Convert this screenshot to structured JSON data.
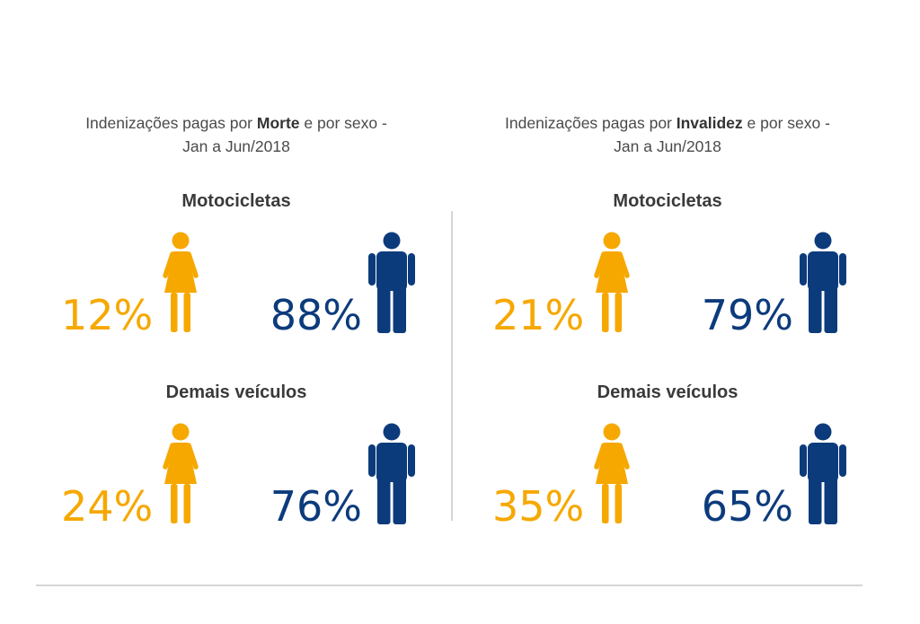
{
  "colors": {
    "female": "#F6A800",
    "male": "#0C3B7C",
    "text": "#4a4a4a",
    "divider": "#d6d6d6"
  },
  "icons": {
    "female": "woman-icon",
    "male": "man-icon"
  },
  "panels": [
    {
      "title_pre": "Indenizações pagas por ",
      "title_bold": "Morte",
      "title_post": " e por sexo -",
      "title_line2": "Jan a Jun/2018",
      "sections": [
        {
          "label": "Motocicletas",
          "female_pct": "12%",
          "male_pct": "88%"
        },
        {
          "label": "Demais veículos",
          "female_pct": "24%",
          "male_pct": "76%"
        }
      ]
    },
    {
      "title_pre": "Indenizações pagas por ",
      "title_bold": "Invalidez",
      "title_post": " e por sexo -",
      "title_line2": "Jan a Jun/2018",
      "sections": [
        {
          "label": "Motocicletas",
          "female_pct": "21%",
          "male_pct": "79%"
        },
        {
          "label": "Demais veículos",
          "female_pct": "35%",
          "male_pct": "65%"
        }
      ]
    }
  ],
  "chart_data": [
    {
      "type": "pie",
      "title": "Indenizações pagas por Morte e por sexo - Jan a Jun/2018",
      "groups": [
        {
          "name": "Motocicletas",
          "categories": [
            "Feminino",
            "Masculino"
          ],
          "values": [
            12,
            88
          ]
        },
        {
          "name": "Demais veículos",
          "categories": [
            "Feminino",
            "Masculino"
          ],
          "values": [
            24,
            76
          ]
        }
      ]
    },
    {
      "type": "pie",
      "title": "Indenizações pagas por Invalidez e por sexo - Jan a Jun/2018",
      "groups": [
        {
          "name": "Motocicletas",
          "categories": [
            "Feminino",
            "Masculino"
          ],
          "values": [
            21,
            79
          ]
        },
        {
          "name": "Demais veículos",
          "categories": [
            "Feminino",
            "Masculino"
          ],
          "values": [
            35,
            65
          ]
        }
      ]
    }
  ]
}
